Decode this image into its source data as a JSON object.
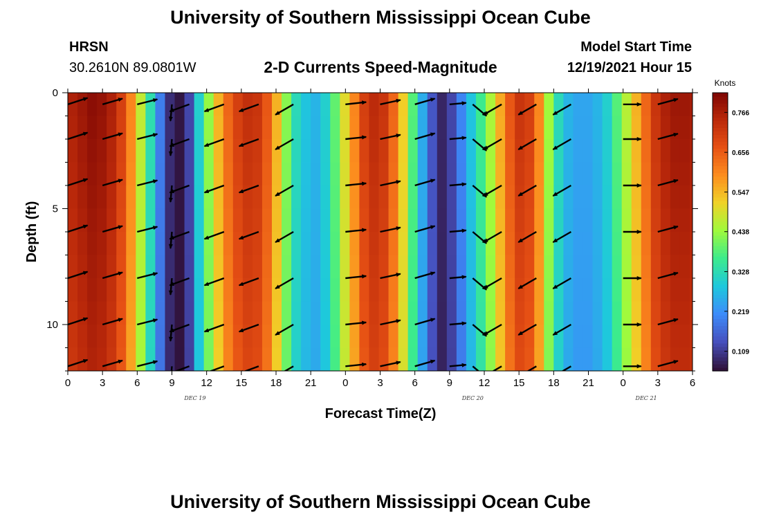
{
  "header": {
    "title": "University of Southern Mississippi Ocean Cube",
    "station": "HRSN",
    "coordinates": "30.2610N  89.0801W",
    "plot_title": "2-D Currents Speed-Magnitude",
    "model_label": "Model Start Time",
    "model_time": "12/19/2021 Hour 15",
    "footer_title": "University of Southern Mississippi Ocean Cube"
  },
  "chart_data": {
    "type": "heatmap",
    "title": "2-D Currents Speed-Magnitude",
    "xlabel": "Forecast Time(Z)",
    "ylabel": "Depth (ft)",
    "x_range": [
      0,
      54
    ],
    "y_range": [
      0,
      12
    ],
    "y_inverted": true,
    "x_ticks": [
      {
        "v": 0,
        "label": "0"
      },
      {
        "v": 3,
        "label": "3"
      },
      {
        "v": 6,
        "label": "6"
      },
      {
        "v": 9,
        "label": "9"
      },
      {
        "v": 12,
        "label": "12"
      },
      {
        "v": 15,
        "label": "15"
      },
      {
        "v": 18,
        "label": "18"
      },
      {
        "v": 21,
        "label": "21"
      },
      {
        "v": 24,
        "label": "0"
      },
      {
        "v": 27,
        "label": "3"
      },
      {
        "v": 30,
        "label": "6"
      },
      {
        "v": 33,
        "label": "9"
      },
      {
        "v": 36,
        "label": "12"
      },
      {
        "v": 39,
        "label": "15"
      },
      {
        "v": 42,
        "label": "18"
      },
      {
        "v": 45,
        "label": "21"
      },
      {
        "v": 48,
        "label": "0"
      },
      {
        "v": 51,
        "label": "3"
      },
      {
        "v": 54,
        "label": "6"
      }
    ],
    "y_ticks": [
      {
        "v": 0,
        "label": "0"
      },
      {
        "v": 5,
        "label": "5"
      },
      {
        "v": 10,
        "label": "10"
      }
    ],
    "date_labels": [
      {
        "v": 11,
        "label": "DEC 19"
      },
      {
        "v": 35,
        "label": "DEC 20"
      },
      {
        "v": 50,
        "label": "DEC 21"
      }
    ],
    "colorbar": {
      "unit": "Knots",
      "min": 0.055,
      "max": 0.82,
      "ticks": [
        0.766,
        0.656,
        0.547,
        0.438,
        0.328,
        0.219,
        0.109
      ]
    },
    "speed_by_hour": [
      0.76,
      0.78,
      0.8,
      0.79,
      0.76,
      0.7,
      0.6,
      0.47,
      0.33,
      0.19,
      0.09,
      0.06,
      0.12,
      0.3,
      0.43,
      0.55,
      0.64,
      0.7,
      0.73,
      0.72,
      0.66,
      0.55,
      0.42,
      0.32,
      0.28,
      0.26,
      0.3,
      0.39,
      0.5,
      0.6,
      0.7,
      0.74,
      0.72,
      0.64,
      0.52,
      0.38,
      0.25,
      0.14,
      0.08,
      0.12,
      0.2,
      0.28,
      0.36,
      0.45,
      0.56,
      0.66,
      0.72,
      0.7,
      0.6,
      0.44,
      0.32,
      0.26,
      0.24,
      0.24,
      0.26,
      0.3,
      0.38,
      0.46,
      0.55,
      0.64,
      0.72,
      0.76,
      0.78,
      0.78,
      0.77,
      0.76
    ],
    "arrow_times": [
      0,
      3,
      6,
      9,
      10.5,
      13.5,
      16.5,
      19.5,
      24,
      27,
      30,
      33,
      35,
      37.5,
      40.5,
      43.5,
      48,
      51
    ],
    "arrow_depths": [
      0.5,
      2,
      4,
      6,
      8,
      10,
      11.8
    ],
    "arrow_angles_deg": [
      18,
      16,
      14,
      -95,
      200,
      200,
      200,
      210,
      6,
      12,
      16,
      5,
      -40,
      210,
      210,
      210,
      0,
      15
    ],
    "arrow_lengths": [
      30,
      30,
      30,
      24,
      30,
      30,
      30,
      30,
      30,
      30,
      30,
      24,
      26,
      30,
      30,
      30,
      26,
      30
    ]
  }
}
